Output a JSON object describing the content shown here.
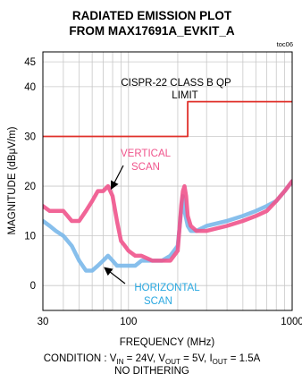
{
  "chart_data": {
    "type": "line",
    "title_line1": "RADIATED EMISSION PLOT",
    "title_line2": "FROM MAX17691A_EVKIT_A",
    "figure_id": "toc06",
    "xlabel": "FREQUENCY (MHz)",
    "ylabel": "MAGNITUDE (dBμV/m)",
    "x_scale": "log",
    "xlim": [
      30,
      1000
    ],
    "ylim": [
      -5,
      47
    ],
    "x_ticks": [
      "30",
      "100",
      "1000"
    ],
    "y_ticks": [
      "0",
      "10",
      "20",
      "30",
      "40",
      "45"
    ],
    "grid": true,
    "series": [
      {
        "name": "VERTICAL SCAN",
        "color": "#f0548c",
        "x": [
          30,
          33,
          36,
          40,
          45,
          50,
          55,
          60,
          65,
          70,
          75,
          80,
          85,
          90,
          95,
          100,
          110,
          120,
          140,
          160,
          180,
          200,
          210,
          215,
          220,
          225,
          230,
          240,
          260,
          300,
          400,
          500,
          600,
          700,
          800,
          900,
          1000
        ],
        "y": [
          16,
          15,
          15,
          15,
          13,
          13,
          15,
          17,
          19,
          19,
          20,
          18,
          13,
          9,
          8,
          7,
          6,
          6,
          5,
          5,
          5,
          7,
          16,
          19,
          20,
          18,
          14,
          12,
          11,
          11,
          12,
          13,
          14,
          15,
          17,
          19,
          21
        ],
        "label_line1": "VERTICAL",
        "label_line2": "SCAN"
      },
      {
        "name": "HORIZONTAL SCAN",
        "color": "#7ab8ea",
        "x": [
          30,
          33,
          36,
          40,
          45,
          50,
          55,
          60,
          65,
          70,
          75,
          80,
          85,
          90,
          95,
          100,
          110,
          120,
          140,
          160,
          180,
          200,
          210,
          215,
          220,
          230,
          240,
          260,
          300,
          400,
          500,
          600,
          700,
          800,
          900,
          1000
        ],
        "y": [
          13,
          12,
          11,
          10,
          8,
          5,
          3,
          3,
          4,
          5,
          6,
          5,
          4,
          4,
          4,
          4,
          4,
          5,
          5,
          5,
          6,
          8,
          15,
          18,
          15,
          12,
          11,
          11,
          12,
          13,
          14,
          15,
          16,
          17,
          19,
          21
        ],
        "label_line1": "HORIZONTAL",
        "label_line2": "SCAN"
      },
      {
        "name": "CISPR-22 CLASS B QP LIMIT",
        "color": "#e0302a",
        "x": [
          30,
          230,
          230,
          1000
        ],
        "y": [
          30,
          30,
          37,
          37
        ],
        "label_line1": "CISPR-22 CLASS B QP",
        "label_line2": "LIMIT"
      }
    ],
    "condition_prefix": "CONDITION : V",
    "vin_sub": "IN",
    "vin_val": " = 24V, V",
    "vout_sub": "OUT",
    "vout_val": " = 5V, I",
    "iout_sub": "OUT",
    "iout_val": " = 1.5A",
    "condition_line2": "NO DITHERING"
  }
}
